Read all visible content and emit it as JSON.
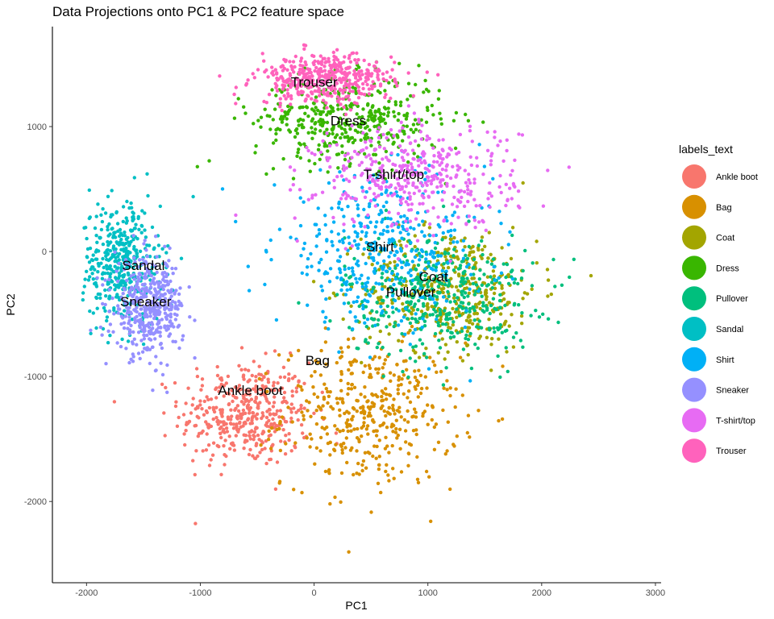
{
  "chart_data": {
    "type": "scatter",
    "title": "Data Projections onto PC1 & PC2 feature space",
    "xlabel": "PC1",
    "ylabel": "PC2",
    "xlim": [
      -2300,
      3050
    ],
    "ylim": [
      -2650,
      1800
    ],
    "xticks": [
      -2000,
      -1000,
      0,
      1000,
      2000,
      3000
    ],
    "yticks": [
      -2000,
      -1000,
      0,
      1000
    ],
    "xtick_labels": [
      "-2000",
      "-1000",
      "0",
      "1000",
      "2000",
      "3000"
    ],
    "ytick_labels": [
      "-2000",
      "-1000",
      "0",
      "1000"
    ],
    "grid": false,
    "legend_title": "labels_text",
    "legend_position": "right",
    "series": [
      {
        "name": "Ankle boot",
        "color": "#F8766D",
        "center": [
          -600,
          -1300
        ],
        "spread": [
          520,
          380
        ]
      },
      {
        "name": "Bag",
        "color": "#D89000",
        "center": [
          500,
          -1300
        ],
        "spread": [
          700,
          520
        ]
      },
      {
        "name": "Coat",
        "color": "#A3A500",
        "center": [
          1200,
          -300
        ],
        "spread": [
          700,
          450
        ]
      },
      {
        "name": "Dress",
        "color": "#39B600",
        "center": [
          300,
          1050
        ],
        "spread": [
          750,
          320
        ]
      },
      {
        "name": "Pullover",
        "color": "#00BF7D",
        "center": [
          1100,
          -350
        ],
        "spread": [
          750,
          450
        ]
      },
      {
        "name": "Sandal",
        "color": "#00BFC4",
        "center": [
          -1700,
          -100
        ],
        "spread": [
          320,
          450
        ]
      },
      {
        "name": "Shirt",
        "color": "#00B0F6",
        "center": [
          600,
          0
        ],
        "spread": [
          850,
          550
        ]
      },
      {
        "name": "Sneaker",
        "color": "#9590FF",
        "center": [
          -1450,
          -450
        ],
        "spread": [
          280,
          350
        ]
      },
      {
        "name": "T-shirt/top",
        "color": "#E76BF3",
        "center": [
          900,
          600
        ],
        "spread": [
          800,
          380
        ]
      },
      {
        "name": "Trouser",
        "color": "#FF62BC",
        "center": [
          100,
          1380
        ],
        "spread": [
          550,
          180
        ]
      }
    ],
    "cluster_labels": [
      {
        "text": "Trouser",
        "x": 0,
        "y": 1350
      },
      {
        "text": "Dress",
        "x": 300,
        "y": 1040
      },
      {
        "text": "T-shirt/top",
        "x": 700,
        "y": 610
      },
      {
        "text": "Shirt",
        "x": 580,
        "y": 30
      },
      {
        "text": "Coat",
        "x": 1050,
        "y": -210
      },
      {
        "text": "Pullover",
        "x": 850,
        "y": -330
      },
      {
        "text": "Sandal",
        "x": -1500,
        "y": -120
      },
      {
        "text": "Sneaker",
        "x": -1480,
        "y": -410
      },
      {
        "text": "Bag",
        "x": 30,
        "y": -880
      },
      {
        "text": "Ankle boot",
        "x": -560,
        "y": -1120
      }
    ]
  }
}
